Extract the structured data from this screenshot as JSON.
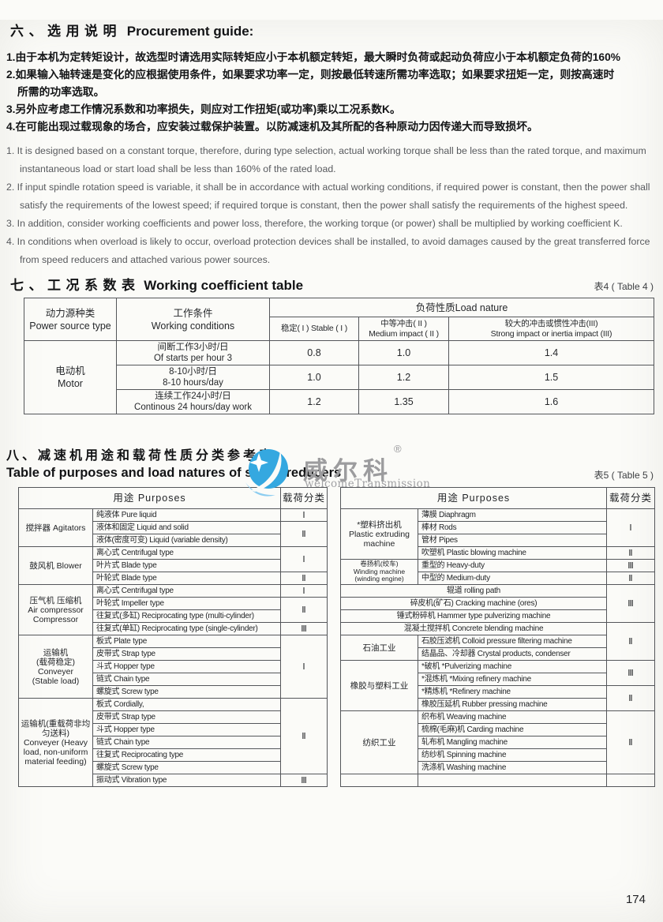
{
  "procurement": {
    "heading_cn": "六、选用说明",
    "heading_en": "Procurement guide:",
    "cn_items": [
      "1.由于本机为定转矩设计，故选型时请选用实际转矩应小于本机额定转矩，最大瞬时负荷或起动负荷应小于本机额定负荷的160%",
      "2.如果输入轴转速是变化的应根据使用条件，如果要求功率一定，则按最低转速所需功率选取；如果要求扭矩一定，则按高速时\n所需的功率选取。",
      "3.另外应考虑工作情况系数和功率损失，则应对工作扭矩(或功率)乘以工况系数K。",
      "4.在可能出现过载现象的场合，应安装过载保护装置。以防减速机及其所配的各种原动力因传递大而导致损坏。"
    ],
    "en_items": [
      "1. It is designed based on a constant torque, therefore, during type selection, actual working torque shall be less than the rated  torque, and maximum instantaneous load or start load shall be less than 160% of the rated load.",
      "2. If input spindle rotation speed is variable, it shall be in accordance with actual working conditions, if required power is constant, then the power shall satisfy the requirements of the lowest speed; if required torque is constant, then the power shall satisfy the requirements of the highest speed.",
      "3. In addition, consider working coefficients and power loss, therefore, the working torque (or power) shall be multiplied by working coefficient K.",
      "4. In conditions when overload is likely to occur, overload protection devices shall be installed, to avoid damages caused by the great transferred force from speed reducers and attached various power sources."
    ]
  },
  "coeff_section": {
    "heading_cn": "七、工况系数表",
    "heading_en": "Working coefficient table",
    "table_label": "表4 ( Table 4 )"
  },
  "table4": {
    "power_source_header": "动力源种类\nPower source type",
    "conditions_header": "工作条件\nWorking conditions",
    "load_nature_header": "负荷性质Load nature",
    "stable_header": "稳定( I ) Stable ( I )",
    "medium_header": "中等冲击( II )\nMedium impact ( II )",
    "strong_header": "较大的冲击或惯性冲击(III)\nStrong impact or inertia impact (III)",
    "motor_label": "电动机\nMotor",
    "rows": [
      {
        "condition": "间断工作3小时/日\nOf starts per hour 3",
        "stable": "0.8",
        "medium": "1.0",
        "strong": "1.4"
      },
      {
        "condition": "8-10小时/日\n8-10 hours/day",
        "stable": "1.0",
        "medium": "1.2",
        "strong": "1.5"
      },
      {
        "condition": "连续工作24小时/日\nContinous 24 hours/day work",
        "stable": "1.2",
        "medium": "1.35",
        "strong": "1.6"
      }
    ]
  },
  "watermark": {
    "brand_cn": "威尔科",
    "registered_mark": "®",
    "brand_en": "welcomeTransmission",
    "circle_color": "#35a8e0",
    "crescent_color": "#8dcdf0",
    "text_color": "#9c9c9e"
  },
  "purposes_section": {
    "heading_cn": "八、减速机用途和载荷性质分类参考表",
    "heading_en": "Table of purposes and load natures of speed reducers",
    "table_label": "表5 ( Table 5 )"
  },
  "table5_left": {
    "rows": [
      [
        {
          "t": "用途  Purposes",
          "cs": 2,
          "c": "head"
        },
        {
          "t": "载荷分类",
          "c": "head"
        }
      ],
      [
        {
          "t": "搅拌器  Agitators",
          "rs": 3,
          "c": "group"
        },
        {
          "t": "纯液体 Pure liquid",
          "c": "item"
        },
        {
          "t": "Ⅰ",
          "c": "cls"
        }
      ],
      [
        {
          "t": "液体和固定 Liquid and solid",
          "c": "item"
        },
        {
          "t": "Ⅱ",
          "rs": 2,
          "c": "cls"
        }
      ],
      [
        {
          "t": "液体(密度可变) Liquid (variable density)",
          "c": "item"
        }
      ],
      [
        {
          "t": "鼓风机  Blower",
          "rs": 3,
          "c": "group"
        },
        {
          "t": "离心式 Centrifugal type",
          "c": "item"
        },
        {
          "t": "Ⅰ",
          "rs": 2,
          "c": "cls"
        }
      ],
      [
        {
          "t": "叶片式 Blade type",
          "c": "item"
        }
      ],
      [
        {
          "t": "叶轮式 Blade type",
          "c": "item"
        },
        {
          "t": "Ⅱ",
          "c": "cls"
        }
      ],
      [
        {
          "t": "压气机 压缩机\nAir compressor\nCompressor",
          "rs": 4,
          "c": "group"
        },
        {
          "t": "离心式 Centrifugal type",
          "c": "item"
        },
        {
          "t": "Ⅰ",
          "c": "cls"
        }
      ],
      [
        {
          "t": "叶轮式 Impeller type",
          "c": "item"
        },
        {
          "t": "Ⅱ",
          "rs": 2,
          "c": "cls"
        }
      ],
      [
        {
          "t": "往复式(多缸) Reciprocating type (multi-cylinder)",
          "c": "item"
        }
      ],
      [
        {
          "t": "往复式(单缸) Reciprocating type (single-cylinder)",
          "c": "item"
        },
        {
          "t": "Ⅲ",
          "c": "cls"
        }
      ],
      [
        {
          "t": "运输机\n(载荷稳定)\nConveyer\n(Stable load)",
          "rs": 5,
          "c": "group"
        },
        {
          "t": "板式 Plate type",
          "c": "item"
        },
        {
          "t": "Ⅰ",
          "rs": 5,
          "c": "cls"
        }
      ],
      [
        {
          "t": "皮带式 Strap type",
          "c": "item"
        }
      ],
      [
        {
          "t": "斗式 Hopper type",
          "c": "item"
        }
      ],
      [
        {
          "t": "链式 Chain type",
          "c": "item"
        }
      ],
      [
        {
          "t": "螺旋式 Screw type",
          "c": "item"
        }
      ],
      [
        {
          "t": "运输机(重载荷非均匀送料)\nConveyer (Heavy load, non-uniform material feeding)",
          "rs": 7,
          "c": "group"
        },
        {
          "t": "板式 Cordially,",
          "c": "item"
        },
        {
          "t": "Ⅱ",
          "rs": 6,
          "c": "cls"
        }
      ],
      [
        {
          "t": "皮带式 Strap type",
          "c": "item"
        }
      ],
      [
        {
          "t": "斗式 Hopper type",
          "c": "item"
        }
      ],
      [
        {
          "t": "链式 Chain type",
          "c": "item"
        }
      ],
      [
        {
          "t": "往复式 Reciprocating type",
          "c": "item"
        }
      ],
      [
        {
          "t": "螺旋式 Screw type",
          "c": "item"
        }
      ],
      [
        {
          "t": "振动式 Vibration type",
          "c": "item"
        },
        {
          "t": "Ⅲ",
          "c": "cls"
        }
      ]
    ]
  },
  "table5_right": {
    "rows": [
      [
        {
          "t": "用途  Purposes",
          "cs": 2,
          "c": "head"
        },
        {
          "t": "载荷分类",
          "c": "head"
        }
      ],
      [
        {
          "t": "*塑料挤出机\nPlastic extruding\nmachine",
          "rs": 4,
          "c": "group"
        },
        {
          "t": "薄膜 Diaphragm",
          "c": "item"
        },
        {
          "t": "Ⅰ",
          "rs": 3,
          "c": "cls"
        }
      ],
      [
        {
          "t": "棒材 Rods",
          "c": "item"
        }
      ],
      [
        {
          "t": "管材 Pipes",
          "c": "item"
        }
      ],
      [
        {
          "t": "吹塑机 Plastic blowing machine",
          "c": "item"
        },
        {
          "t": "Ⅱ",
          "c": "cls"
        }
      ],
      [
        {
          "t": "卷扬机(绞车)\nWinding machine\n(winding engine)",
          "rs": 2,
          "c": "group sm"
        },
        {
          "t": "重型的 Heavy-duty",
          "c": "item"
        },
        {
          "t": "Ⅲ",
          "c": "cls"
        }
      ],
      [
        {
          "t": "中型的 Medium-duty",
          "c": "item"
        },
        {
          "t": "Ⅱ",
          "c": "cls"
        }
      ],
      [
        {
          "t": "辊道 rolling path",
          "cs": 2,
          "c": "item ctr"
        },
        {
          "t": "Ⅲ",
          "rs": 3,
          "c": "cls"
        }
      ],
      [
        {
          "t": "碎皮机(矿石) Cracking machine (ores)",
          "cs": 2,
          "c": "item ctr"
        }
      ],
      [
        {
          "t": "锤式粉碎机 Hammer type pulverizing machine",
          "cs": 2,
          "c": "item ctr"
        }
      ],
      [
        {
          "t": "混凝土搅拌机 Concrete blending machine",
          "cs": 2,
          "c": "item ctr"
        },
        {
          "t": "Ⅱ",
          "rs": 3,
          "c": "cls"
        }
      ],
      [
        {
          "t": "石油工业",
          "rs": 2,
          "c": "group"
        },
        {
          "t": "石胶压滤机 Colloid pressure filtering machine",
          "c": "item"
        }
      ],
      [
        {
          "t": "结晶品、冷却器 Crystal products, condenser",
          "c": "item"
        }
      ],
      [
        {
          "t": "橡胶与塑料工业",
          "rs": 4,
          "c": "group"
        },
        {
          "t": "*破机 *Pulverizing machine",
          "c": "item"
        },
        {
          "t": "Ⅲ",
          "rs": 2,
          "c": "cls"
        }
      ],
      [
        {
          "t": "*混炼机 *Mixing refinery machine",
          "c": "item"
        }
      ],
      [
        {
          "t": "*精炼机 *Refinery machine",
          "c": "item"
        },
        {
          "t": "Ⅱ",
          "rs": 2,
          "c": "cls"
        }
      ],
      [
        {
          "t": "橡胶压延机 Rubber pressing machine",
          "c": "item"
        }
      ],
      [
        {
          "t": "纺织工业",
          "rs": 5,
          "c": "group"
        },
        {
          "t": "织布机 Weaving machine",
          "c": "item"
        },
        {
          "t": "Ⅱ",
          "rs": 5,
          "c": "cls"
        }
      ],
      [
        {
          "t": "梳棉(毛麻)机 Carding machine",
          "c": "item"
        }
      ],
      [
        {
          "t": "轧布机 Mangling machine",
          "c": "item"
        }
      ],
      [
        {
          "t": "纺纱机 Spinning machine",
          "c": "item"
        }
      ],
      [
        {
          "t": "洗涤机 Washing machine",
          "c": "item"
        }
      ],
      [
        {
          "t": "",
          "c": "group"
        },
        {
          "t": "",
          "c": "item"
        },
        {
          "t": "",
          "c": "cls"
        }
      ]
    ]
  },
  "page": {
    "number": "174"
  }
}
